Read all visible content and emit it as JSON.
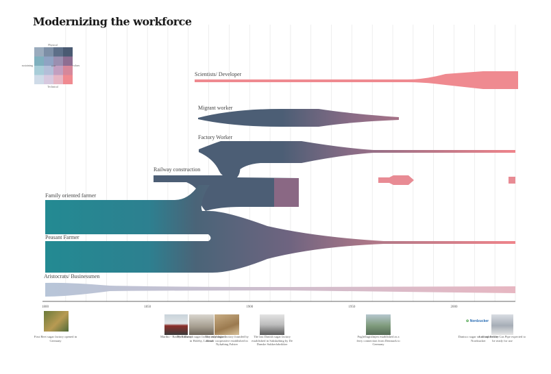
{
  "title": "Modernizing the workforce",
  "legend": {
    "top": "Physical",
    "bottom": "Technical",
    "left": "sustaining",
    "right": "values",
    "center": "goal",
    "colors": [
      [
        "#9aabbd",
        "#7d8fa6",
        "#5d6f88",
        "#4a5a72"
      ],
      [
        "#7fb0be",
        "#8fa3c3",
        "#9a8fb0",
        "#8e6e92"
      ],
      [
        "#a8cdd8",
        "#b3bed8",
        "#c29fc0",
        "#d6879a"
      ],
      [
        "#cfdbe8",
        "#d7c9df",
        "#e6b6c4",
        "#f08a90"
      ]
    ]
  },
  "chart_data": {
    "type": "area",
    "title": "Modernizing the workforce",
    "x_axis": {
      "range": [
        1800,
        2030
      ],
      "ticks": [
        1800,
        1850,
        1900,
        1950,
        2000
      ]
    },
    "grid": true,
    "series": [
      {
        "name": "Scientists/ Developer",
        "points": [
          [
            1873,
            0.5
          ],
          [
            1990,
            0.5
          ],
          [
            2005,
            2
          ],
          [
            2015,
            3
          ],
          [
            2032,
            3
          ]
        ]
      },
      {
        "name": "Migrant worker",
        "points": [
          [
            1874,
            0.2
          ],
          [
            1890,
            1
          ],
          [
            1905,
            2.2
          ],
          [
            1940,
            2.2
          ],
          [
            1950,
            1
          ],
          [
            1970,
            0.2
          ],
          [
            1985,
            0.1
          ]
        ]
      },
      {
        "name": "Factory Worker",
        "points": [
          [
            1874,
            0.3
          ],
          [
            1890,
            1.6
          ],
          [
            1896,
            3.5
          ],
          [
            1925,
            3.5
          ],
          [
            1960,
            0.4
          ],
          [
            2032,
            0.3
          ]
        ]
      },
      {
        "name": "Railway construction",
        "points": [
          [
            1852,
            1
          ],
          [
            1865,
            1
          ],
          [
            1875,
            1.5
          ],
          [
            1924,
            4.5
          ]
        ]
      },
      {
        "name": "Family oriented farmer",
        "points": [
          [
            1800,
            6
          ],
          [
            1870,
            6
          ],
          [
            1880,
            4
          ],
          [
            1900,
            1.5
          ]
        ]
      },
      {
        "name": "Peasant Farmer",
        "points": [
          [
            1800,
            6
          ],
          [
            1885,
            6
          ],
          [
            1920,
            3.5
          ],
          [
            1960,
            0.8
          ],
          [
            2032,
            0.3
          ]
        ]
      },
      {
        "name": "Aristocrats/ Businessmen",
        "points": [
          [
            1800,
            2
          ],
          [
            1840,
            0.5
          ],
          [
            2032,
            1
          ]
        ]
      }
    ]
  },
  "events": [
    {
      "caption": "First Beet sugar factory opened in Germany"
    },
    {
      "caption": "Maribo - Rødby Railway"
    },
    {
      "caption": "First Danish sugar factory established in Holeby, Lolland"
    },
    {
      "caption": "The only sugar factory founded by former cooperative established in Nykøbing Falster"
    },
    {
      "caption": "The last Danish sugar factory established in Sakskøbing by De Danske Sukkerfabrikker"
    },
    {
      "caption": "Fugleflugtslinjen established as a ferry connection from Denmark to Germany"
    },
    {
      "caption": "Danisco sugar sector aquired by Nordzucker"
    },
    {
      "caption": "Lolland-Falster Gas Pipe expected to be ready for use"
    }
  ],
  "nordzucker_logo": "Nordzucker"
}
